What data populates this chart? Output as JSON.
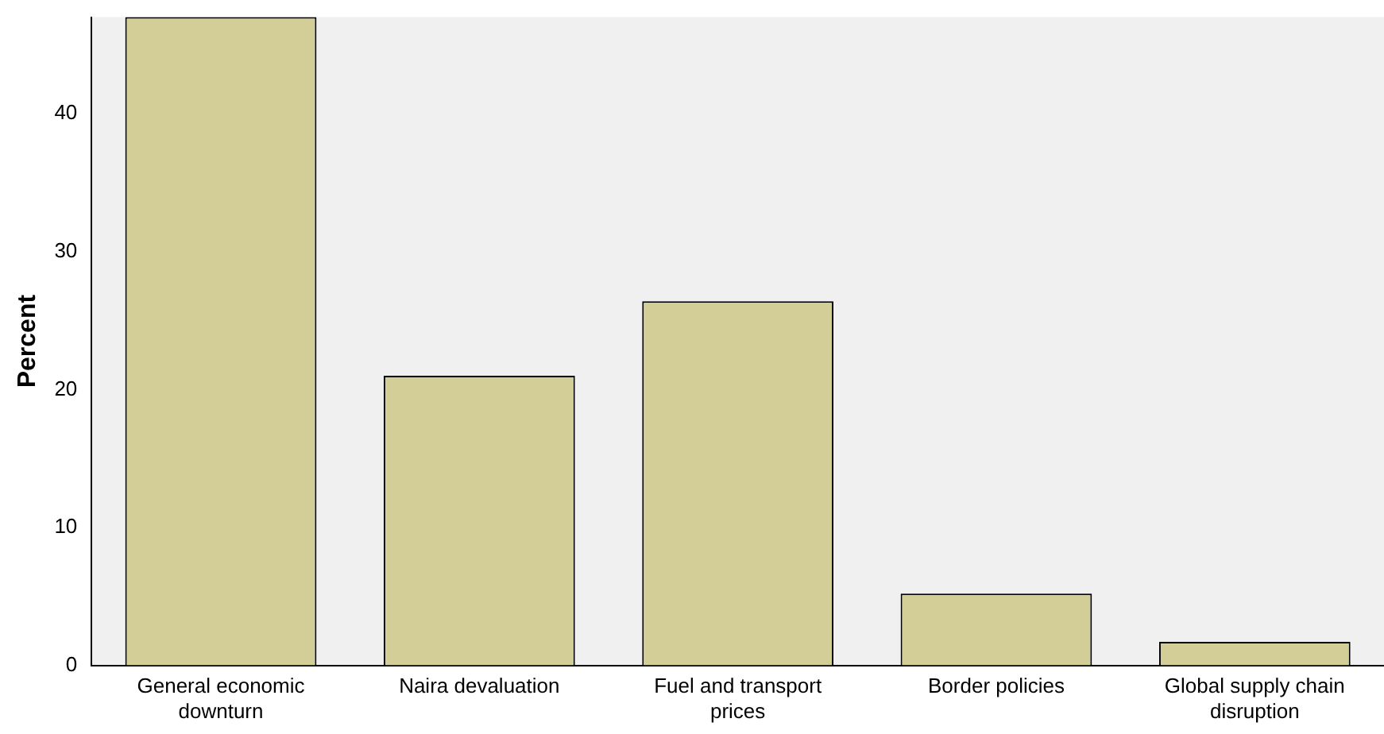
{
  "chart_data": {
    "type": "bar",
    "ylabel": "Percent",
    "categories": [
      "General economic downturn",
      "Naira devaluation",
      "Fuel and transport prices",
      "Border policies",
      "Global supply chain disruption"
    ],
    "values": [
      47,
      21.0,
      26.4,
      5.2,
      1.7
    ],
    "color": "#d3ce98",
    "ylim": [
      0,
      47
    ],
    "yticks": [
      0,
      10,
      20,
      30,
      40
    ],
    "grid": false,
    "legend": false
  }
}
